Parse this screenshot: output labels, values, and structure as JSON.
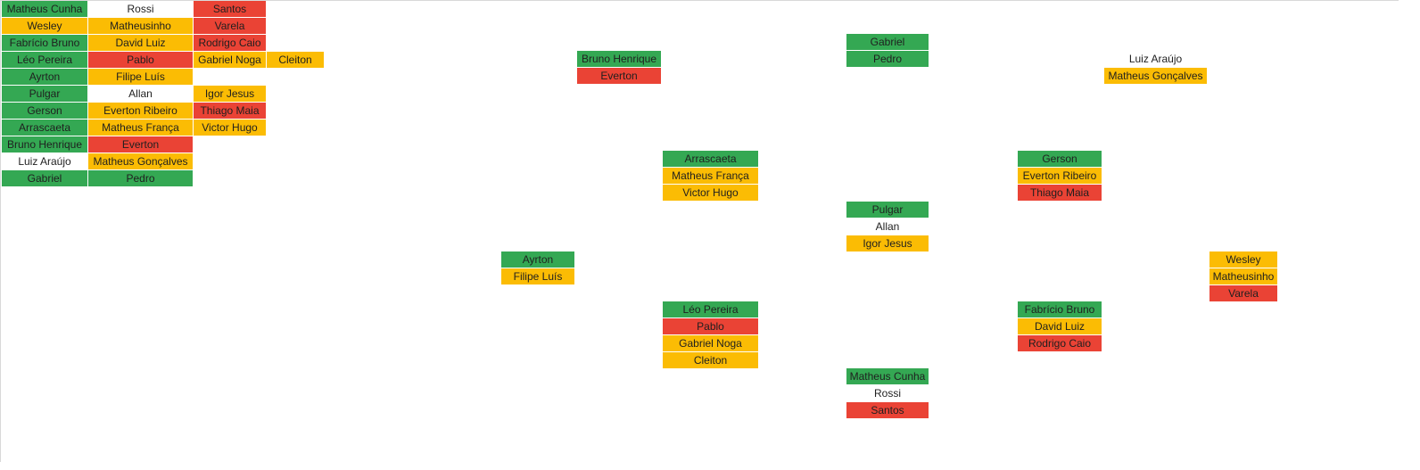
{
  "colors": {
    "green": "#34a853",
    "yellow": "#fbbc04",
    "red": "#ea4335",
    "grid": "#d9d9d9"
  },
  "table": {
    "rows": [
      [
        {
          "text": "Matheus Cunha",
          "color": "green"
        },
        {
          "text": "Rossi",
          "color": "none"
        },
        {
          "text": "Santos",
          "color": "red"
        }
      ],
      [
        {
          "text": "Wesley",
          "color": "yellow"
        },
        {
          "text": "Matheusinho",
          "color": "yellow"
        },
        {
          "text": "Varela",
          "color": "red"
        }
      ],
      [
        {
          "text": "Fabrício Bruno",
          "color": "green"
        },
        {
          "text": "David Luiz",
          "color": "yellow"
        },
        {
          "text": "Rodrigo Caio",
          "color": "red"
        }
      ],
      [
        {
          "text": "Léo Pereira",
          "color": "green"
        },
        {
          "text": "Pablo",
          "color": "red"
        },
        {
          "text": "Gabriel Noga",
          "color": "yellow"
        },
        {
          "text": "Cleiton",
          "color": "yellow"
        }
      ],
      [
        {
          "text": "Ayrton",
          "color": "green"
        },
        {
          "text": "Filipe Luís",
          "color": "yellow"
        }
      ],
      [
        {
          "text": "Pulgar",
          "color": "green"
        },
        {
          "text": "Allan",
          "color": "none"
        },
        {
          "text": "Igor Jesus",
          "color": "yellow"
        }
      ],
      [
        {
          "text": "Gerson",
          "color": "green"
        },
        {
          "text": "Everton Ribeiro",
          "color": "yellow"
        },
        {
          "text": "Thiago Maia",
          "color": "red"
        }
      ],
      [
        {
          "text": "Arrascaeta",
          "color": "green"
        },
        {
          "text": "Matheus França",
          "color": "yellow"
        },
        {
          "text": "Victor Hugo",
          "color": "yellow"
        }
      ],
      [
        {
          "text": "Bruno Henrique",
          "color": "green"
        },
        {
          "text": "Everton",
          "color": "red"
        }
      ],
      [
        {
          "text": "Luiz Araújo",
          "color": "none"
        },
        {
          "text": "Matheus Gonçalves",
          "color": "yellow"
        }
      ],
      [
        {
          "text": "Gabriel",
          "color": "green"
        },
        {
          "text": "Pedro",
          "color": "green"
        }
      ]
    ]
  },
  "formation": {
    "groups": [
      {
        "name": "bruno-henrique",
        "cells": [
          {
            "text": "Bruno Henrique",
            "color": "green"
          },
          {
            "text": "Everton",
            "color": "red"
          }
        ]
      },
      {
        "name": "gabriel",
        "cells": [
          {
            "text": "Gabriel",
            "color": "green"
          },
          {
            "text": "Pedro",
            "color": "green"
          }
        ]
      },
      {
        "name": "luiz-araujo",
        "cells": [
          {
            "text": "Luiz Araújo",
            "color": "none"
          },
          {
            "text": "Matheus Gonçalves",
            "color": "yellow"
          }
        ]
      },
      {
        "name": "arrascaeta",
        "cells": [
          {
            "text": "Arrascaeta",
            "color": "green"
          },
          {
            "text": "Matheus França",
            "color": "yellow"
          },
          {
            "text": "Victor Hugo",
            "color": "yellow"
          }
        ]
      },
      {
        "name": "gerson",
        "cells": [
          {
            "text": "Gerson",
            "color": "green"
          },
          {
            "text": "Everton Ribeiro",
            "color": "yellow"
          },
          {
            "text": "Thiago Maia",
            "color": "red"
          }
        ]
      },
      {
        "name": "pulgar",
        "cells": [
          {
            "text": "Pulgar",
            "color": "green"
          },
          {
            "text": "Allan",
            "color": "none"
          },
          {
            "text": "Igor Jesus",
            "color": "yellow"
          }
        ]
      },
      {
        "name": "ayrton",
        "cells": [
          {
            "text": "Ayrton",
            "color": "green"
          },
          {
            "text": "Filipe Luís",
            "color": "yellow"
          }
        ]
      },
      {
        "name": "wesley",
        "cells": [
          {
            "text": "Wesley",
            "color": "yellow"
          },
          {
            "text": "Matheusinho",
            "color": "yellow"
          },
          {
            "text": "Varela",
            "color": "red"
          }
        ]
      },
      {
        "name": "leo-pereira",
        "cells": [
          {
            "text": "Léo Pereira",
            "color": "green"
          },
          {
            "text": "Pablo",
            "color": "red"
          },
          {
            "text": "Gabriel Noga",
            "color": "yellow"
          },
          {
            "text": "Cleiton",
            "color": "yellow"
          }
        ]
      },
      {
        "name": "fabricio-bruno",
        "cells": [
          {
            "text": "Fabrício Bruno",
            "color": "green"
          },
          {
            "text": "David Luiz",
            "color": "yellow"
          },
          {
            "text": "Rodrigo Caio",
            "color": "red"
          }
        ]
      },
      {
        "name": "matheus-cunha",
        "cells": [
          {
            "text": "Matheus Cunha",
            "color": "green"
          },
          {
            "text": "Rossi",
            "color": "none"
          },
          {
            "text": "Santos",
            "color": "red"
          }
        ]
      }
    ]
  }
}
